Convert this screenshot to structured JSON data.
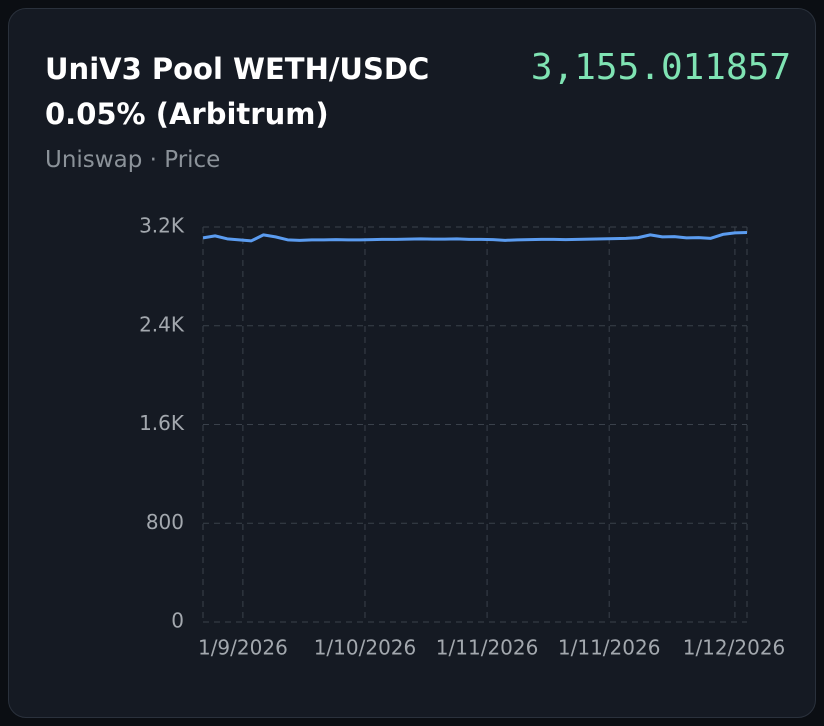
{
  "card": {
    "title": "UniV3 Pool WETH/USDC 0.05% (Arbitrum)",
    "price": "3,155.011857",
    "subtitle": "Uniswap · Price"
  },
  "chart_data": {
    "type": "line",
    "x": [
      0,
      1,
      2,
      3,
      4,
      5,
      6,
      7,
      8,
      9,
      10,
      11,
      12,
      13,
      14,
      15,
      16,
      17,
      18,
      19,
      20,
      21,
      22,
      23,
      24,
      25,
      26,
      27,
      28,
      29,
      30,
      31,
      32,
      33,
      34,
      35,
      36,
      37,
      38,
      39,
      40,
      41,
      42,
      43,
      44,
      45
    ],
    "series": [
      {
        "name": "Price",
        "color": "#5b9cf0",
        "values": [
          3112,
          3128,
          3104,
          3096,
          3088,
          3136,
          3120,
          3096,
          3092,
          3096,
          3096,
          3098,
          3096,
          3096,
          3098,
          3100,
          3100,
          3102,
          3104,
          3102,
          3102,
          3104,
          3100,
          3100,
          3098,
          3092,
          3096,
          3098,
          3100,
          3100,
          3098,
          3100,
          3102,
          3104,
          3106,
          3108,
          3114,
          3136,
          3120,
          3122,
          3112,
          3114,
          3108,
          3140,
          3152,
          3155
        ]
      }
    ],
    "xlim": [
      0,
      45
    ],
    "xticks": [
      {
        "value": 3.3,
        "label": "1/9/2026"
      },
      {
        "value": 13.4,
        "label": "1/10/2026"
      },
      {
        "value": 23.5,
        "label": "1/11/2026"
      },
      {
        "value": 33.6,
        "label": "1/11/2026"
      },
      {
        "value": 44,
        "label": "1/12/2026"
      }
    ],
    "ylim": [
      0,
      3200
    ],
    "yticks": [
      0,
      800,
      {
        "value": 1600,
        "label": "1.6K"
      },
      {
        "value": 2400,
        "label": "2.4K"
      },
      {
        "value": 3200,
        "label": "3.2K"
      }
    ],
    "grid": true
  }
}
